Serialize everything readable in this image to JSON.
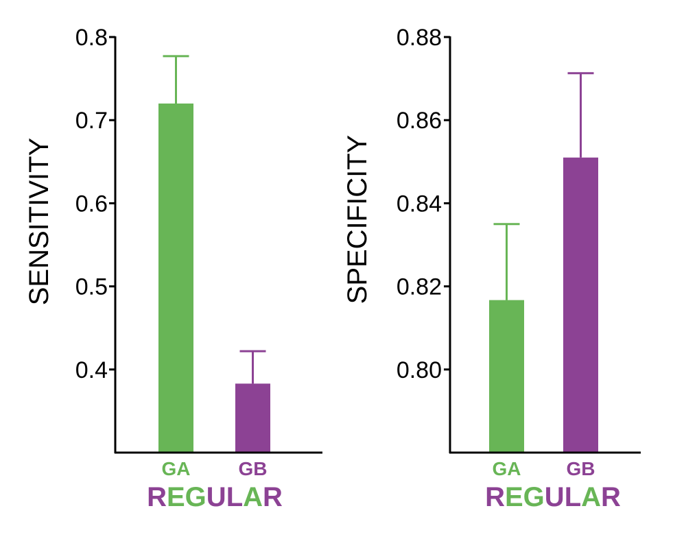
{
  "colors": {
    "ga": "#68b556",
    "gb": "#8c4294",
    "axis": "#000000"
  },
  "chart_data": [
    {
      "type": "bar",
      "ylabel": "SENSITIVITY",
      "categories": [
        "GA",
        "GB"
      ],
      "group_label": "REGULAR",
      "values": [
        0.72,
        0.383
      ],
      "errors": [
        0.057,
        0.039
      ],
      "ylim": [
        0.3,
        0.8
      ],
      "yticks": [
        0.4,
        0.5,
        0.6,
        0.7,
        0.8
      ],
      "ytick_labels": [
        "0.4",
        "0.5",
        "0.6",
        "0.7",
        "0.8"
      ]
    },
    {
      "type": "bar",
      "ylabel": "SPECIFICITY",
      "categories": [
        "GA",
        "GB"
      ],
      "group_label": "REGULAR",
      "values": [
        0.8167,
        0.851
      ],
      "errors": [
        0.0183,
        0.0203
      ],
      "ylim": [
        0.78,
        0.88
      ],
      "yticks": [
        0.8,
        0.82,
        0.84,
        0.86,
        0.88
      ],
      "ytick_labels": [
        "0.80",
        "0.82",
        "0.84",
        "0.86",
        "0.88"
      ]
    }
  ]
}
